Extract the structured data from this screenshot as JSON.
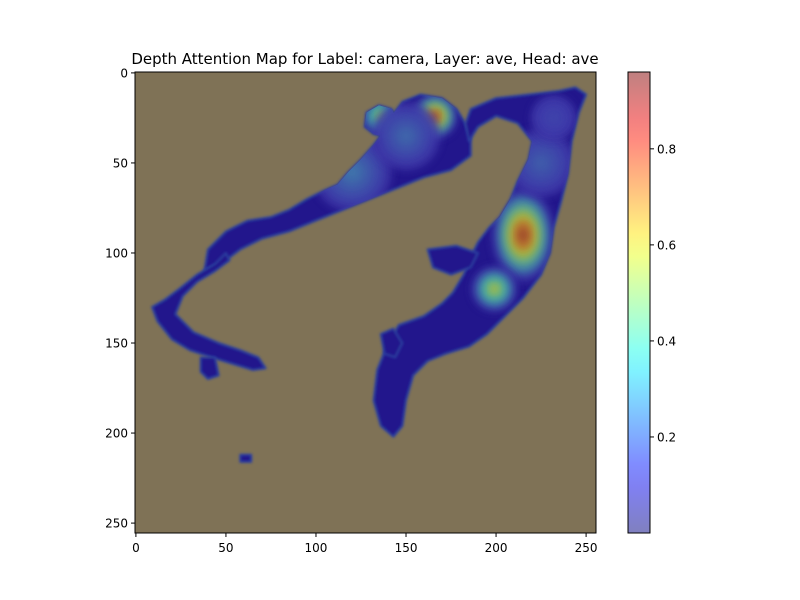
{
  "chart_data": {
    "type": "heatmap",
    "title": "Depth Attention Map for Label: camera, Layer: ave, Head: ave",
    "xlabel": "",
    "ylabel": "",
    "x_range": [
      0,
      255
    ],
    "y_range": [
      0,
      255
    ],
    "y_inverted": true,
    "x_ticks": [
      0,
      50,
      100,
      150,
      200,
      250
    ],
    "y_ticks": [
      0,
      50,
      100,
      150,
      200,
      250
    ],
    "colorbar": {
      "colormap": "jet",
      "alpha": 0.5,
      "range": [
        0.0,
        0.96
      ],
      "ticks": [
        0.2,
        0.4,
        0.6,
        0.8
      ]
    },
    "background_color": "#7f7256",
    "mask_base_color": "#22128c",
    "mask_regions": [
      {
        "name": "upper-left-arm",
        "points": [
          [
            38,
            110
          ],
          [
            40,
            98
          ],
          [
            50,
            88
          ],
          [
            62,
            82
          ],
          [
            75,
            80
          ],
          [
            85,
            76
          ],
          [
            95,
            70
          ],
          [
            105,
            65
          ],
          [
            112,
            62
          ],
          [
            118,
            55
          ],
          [
            125,
            48
          ],
          [
            132,
            40
          ],
          [
            138,
            32
          ],
          [
            142,
            24
          ],
          [
            148,
            16
          ],
          [
            158,
            12
          ],
          [
            170,
            14
          ],
          [
            178,
            20
          ],
          [
            183,
            28
          ],
          [
            186,
            36
          ],
          [
            186,
            46
          ],
          [
            175,
            54
          ],
          [
            160,
            58
          ],
          [
            145,
            64
          ],
          [
            130,
            70
          ],
          [
            115,
            76
          ],
          [
            100,
            82
          ],
          [
            85,
            88
          ],
          [
            70,
            92
          ],
          [
            58,
            98
          ],
          [
            50,
            104
          ]
        ]
      },
      {
        "name": "upper-tip",
        "points": [
          [
            128,
            22
          ],
          [
            135,
            18
          ],
          [
            142,
            20
          ],
          [
            146,
            28
          ],
          [
            140,
            36
          ],
          [
            132,
            34
          ],
          [
            127,
            30
          ]
        ]
      },
      {
        "name": "left-hook",
        "points": [
          [
            50,
            100
          ],
          [
            44,
            106
          ],
          [
            34,
            112
          ],
          [
            24,
            120
          ],
          [
            16,
            126
          ],
          [
            9,
            130
          ],
          [
            12,
            138
          ],
          [
            20,
            148
          ],
          [
            30,
            154
          ],
          [
            42,
            158
          ],
          [
            55,
            162
          ],
          [
            65,
            165
          ],
          [
            72,
            164
          ],
          [
            68,
            158
          ],
          [
            58,
            154
          ],
          [
            46,
            150
          ],
          [
            32,
            144
          ],
          [
            22,
            134
          ],
          [
            26,
            124
          ],
          [
            34,
            116
          ],
          [
            44,
            110
          ],
          [
            52,
            104
          ]
        ]
      },
      {
        "name": "left-hook-tail",
        "points": [
          [
            36,
            158
          ],
          [
            44,
            158
          ],
          [
            46,
            168
          ],
          [
            40,
            170
          ],
          [
            36,
            166
          ]
        ]
      },
      {
        "name": "right-arm",
        "points": [
          [
            186,
            20
          ],
          [
            200,
            14
          ],
          [
            218,
            12
          ],
          [
            235,
            10
          ],
          [
            244,
            8
          ],
          [
            250,
            12
          ],
          [
            246,
            22
          ],
          [
            242,
            38
          ],
          [
            240,
            56
          ],
          [
            236,
            72
          ],
          [
            232,
            86
          ],
          [
            230,
            100
          ],
          [
            225,
            112
          ],
          [
            215,
            125
          ],
          [
            205,
            135
          ],
          [
            195,
            145
          ],
          [
            185,
            152
          ],
          [
            172,
            156
          ],
          [
            162,
            160
          ],
          [
            154,
            168
          ],
          [
            150,
            182
          ],
          [
            148,
            196
          ],
          [
            143,
            202
          ],
          [
            136,
            196
          ],
          [
            132,
            182
          ],
          [
            134,
            165
          ],
          [
            140,
            150
          ],
          [
            146,
            140
          ],
          [
            160,
            135
          ],
          [
            170,
            128
          ],
          [
            176,
            122
          ],
          [
            182,
            112
          ],
          [
            186,
            102
          ],
          [
            190,
            94
          ],
          [
            196,
            86
          ],
          [
            202,
            80
          ],
          [
            208,
            70
          ],
          [
            212,
            60
          ],
          [
            218,
            48
          ],
          [
            220,
            38
          ],
          [
            212,
            28
          ],
          [
            200,
            24
          ],
          [
            190,
            30
          ],
          [
            185,
            38
          ],
          [
            183,
            28
          ]
        ]
      },
      {
        "name": "mid-island",
        "points": [
          [
            162,
            98
          ],
          [
            178,
            96
          ],
          [
            190,
            100
          ],
          [
            186,
            108
          ],
          [
            175,
            112
          ],
          [
            165,
            108
          ]
        ]
      },
      {
        "name": "lower-protrusion",
        "points": [
          [
            136,
            145
          ],
          [
            143,
            142
          ],
          [
            148,
            150
          ],
          [
            144,
            158
          ],
          [
            138,
            156
          ]
        ]
      },
      {
        "name": "speck",
        "points": [
          [
            58,
            212
          ],
          [
            64,
            212
          ],
          [
            64,
            216
          ],
          [
            58,
            216
          ]
        ]
      }
    ],
    "hotspots": [
      {
        "x": 166,
        "y": 24,
        "value": 0.93,
        "radius": 8
      },
      {
        "x": 136,
        "y": 24,
        "value": 0.58,
        "radius": 7
      },
      {
        "x": 215,
        "y": 90,
        "value": 0.96,
        "radius": 11
      },
      {
        "x": 199,
        "y": 120,
        "value": 0.62,
        "radius": 8
      },
      {
        "x": 120,
        "y": 55,
        "value": 0.25,
        "radius": 14
      },
      {
        "x": 225,
        "y": 50,
        "value": 0.2,
        "radius": 12
      },
      {
        "x": 232,
        "y": 25,
        "value": 0.15,
        "radius": 8
      },
      {
        "x": 150,
        "y": 35,
        "value": 0.22,
        "radius": 12
      }
    ]
  }
}
